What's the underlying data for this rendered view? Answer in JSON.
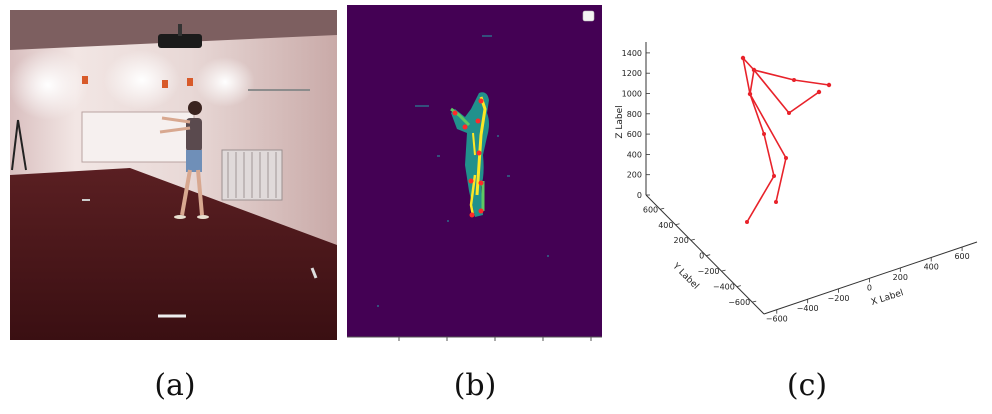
{
  "figure": {
    "captions": [
      "(a)",
      "(b)",
      "(c)"
    ]
  },
  "chart_data": {
    "type": "line3d",
    "title": "",
    "xlabel": "X Label",
    "ylabel": "Y Label",
    "zlabel": "Z Label",
    "x_ticks": [
      "−600",
      "−400",
      "−200",
      "0",
      "200",
      "400",
      "600"
    ],
    "y_ticks": [
      "−600",
      "−400",
      "−200",
      "0",
      "200",
      "400",
      "600"
    ],
    "z_ticks": [
      "0",
      "200",
      "400",
      "600",
      "800",
      "1000",
      "1200",
      "1400"
    ],
    "colors": {
      "skeleton": "#e8222a"
    }
  }
}
